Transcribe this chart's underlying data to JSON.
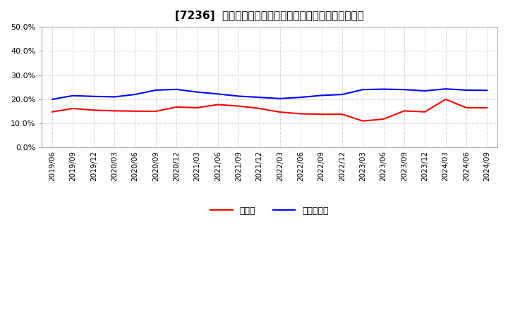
{
  "title": "[7236]  現預金、有利子負債の総資産に対する比率の推移",
  "x_labels": [
    "2019/06",
    "2019/09",
    "2019/12",
    "2020/03",
    "2020/06",
    "2020/09",
    "2020/12",
    "2021/03",
    "2021/06",
    "2021/09",
    "2021/12",
    "2022/03",
    "2022/06",
    "2022/09",
    "2022/12",
    "2023/03",
    "2023/06",
    "2023/09",
    "2023/12",
    "2024/03",
    "2024/06",
    "2024/09"
  ],
  "cash": [
    0.148,
    0.162,
    0.155,
    0.152,
    0.151,
    0.15,
    0.168,
    0.165,
    0.178,
    0.172,
    0.162,
    0.147,
    0.14,
    0.138,
    0.138,
    0.11,
    0.118,
    0.152,
    0.148,
    0.2,
    0.165,
    0.165
  ],
  "debt": [
    0.2,
    0.215,
    0.212,
    0.21,
    0.22,
    0.238,
    0.241,
    0.23,
    0.222,
    0.213,
    0.208,
    0.203,
    0.208,
    0.216,
    0.22,
    0.24,
    0.242,
    0.24,
    0.235,
    0.243,
    0.238,
    0.237
  ],
  "cash_color": "#ff0000",
  "debt_color": "#0000ff",
  "background_color": "#ffffff",
  "grid_color": "#aaaaaa",
  "ylim": [
    0.0,
    0.5
  ],
  "yticks": [
    0.0,
    0.1,
    0.2,
    0.3,
    0.4,
    0.5
  ],
  "legend_cash": "現預金",
  "legend_debt": "有利子負債",
  "title_fontsize": 11,
  "axis_fontsize": 7.5,
  "legend_fontsize": 9
}
